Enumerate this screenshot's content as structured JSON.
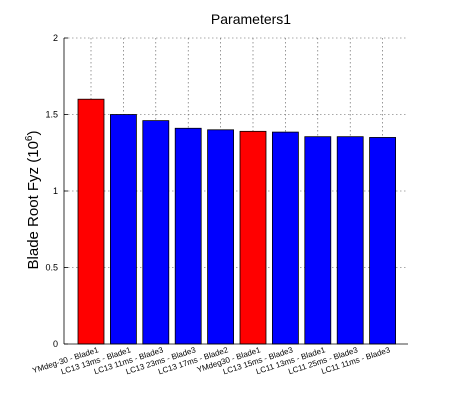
{
  "chart_data": {
    "type": "bar",
    "title": "Parameters1",
    "ylabel": "Blade Root Fyz (10",
    "ylabel_exponent": "6",
    "ylabel_close": ")",
    "xlabel": "",
    "ylim": [
      0,
      2
    ],
    "yticks": [
      {
        "value": 0,
        "label": "0"
      },
      {
        "value": 0.5,
        "label": "0.5"
      },
      {
        "value": 1,
        "label": "1"
      },
      {
        "value": 1.5,
        "label": "1.5"
      },
      {
        "value": 2,
        "label": "2"
      }
    ],
    "grid": true,
    "categories": [
      "YMdeg-30 - Blade1",
      "LC13 13ms - Blade1",
      "LC13 11ms - Blade3",
      "LC13 23ms - Blade3",
      "LC13 17ms - Blade2",
      "YMdeg30 - Blade1",
      "LC13 15ms - Blade3",
      "LC11 13ms - Blade1",
      "LC11 25ms - Blade3",
      "LC11 11ms - Blade3"
    ],
    "values": [
      1.6,
      1.5,
      1.46,
      1.41,
      1.4,
      1.39,
      1.385,
      1.355,
      1.355,
      1.35
    ],
    "bar_colors": [
      "#ff0000",
      "#0000ff",
      "#0000ff",
      "#0000ff",
      "#0000ff",
      "#ff0000",
      "#0000ff",
      "#0000ff",
      "#0000ff",
      "#0000ff"
    ]
  }
}
